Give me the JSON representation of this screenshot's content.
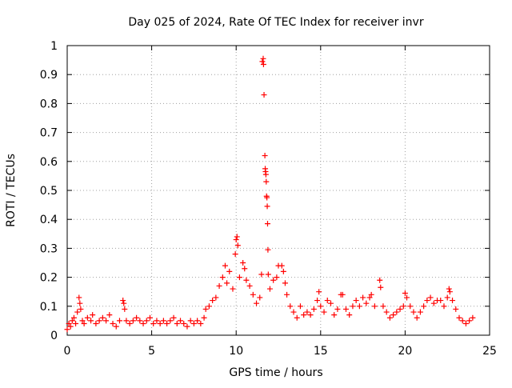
{
  "chart_data": {
    "type": "scatter",
    "title": "Day 025 of 2024, Rate Of TEC Index for receiver invr",
    "xlabel": "GPS time / hours",
    "ylabel": "ROTI / TECUs",
    "xlim": [
      0,
      25
    ],
    "ylim": [
      0,
      1
    ],
    "grid": true,
    "marker": "+",
    "marker_color": "#ff0000",
    "xticks": [
      0,
      5,
      10,
      15,
      20,
      25
    ],
    "yticks": [
      0,
      0.1,
      0.2,
      0.3,
      0.4,
      0.5,
      0.6,
      0.7,
      0.8,
      0.9,
      1
    ],
    "xtick_labels": [
      "0",
      "5",
      "10",
      "15",
      "20",
      "25"
    ],
    "ytick_labels": [
      "0",
      "0.1",
      "0.2",
      "0.3",
      "0.4",
      "0.5",
      "0.6",
      "0.7",
      "0.8",
      "0.9",
      "1"
    ],
    "series": [
      {
        "name": "ROTI",
        "points": [
          [
            0.0,
            0.02
          ],
          [
            0.1,
            0.04
          ],
          [
            0.2,
            0.03
          ],
          [
            0.3,
            0.05
          ],
          [
            0.4,
            0.06
          ],
          [
            0.5,
            0.04
          ],
          [
            0.6,
            0.08
          ],
          [
            0.7,
            0.13
          ],
          [
            0.75,
            0.11
          ],
          [
            0.8,
            0.09
          ],
          [
            0.9,
            0.05
          ],
          [
            1.0,
            0.04
          ],
          [
            1.2,
            0.06
          ],
          [
            1.4,
            0.05
          ],
          [
            1.5,
            0.07
          ],
          [
            1.7,
            0.04
          ],
          [
            1.9,
            0.05
          ],
          [
            2.1,
            0.06
          ],
          [
            2.3,
            0.05
          ],
          [
            2.5,
            0.07
          ],
          [
            2.7,
            0.04
          ],
          [
            2.9,
            0.03
          ],
          [
            3.1,
            0.05
          ],
          [
            3.3,
            0.12
          ],
          [
            3.35,
            0.11
          ],
          [
            3.4,
            0.09
          ],
          [
            3.5,
            0.05
          ],
          [
            3.7,
            0.04
          ],
          [
            3.9,
            0.05
          ],
          [
            4.1,
            0.06
          ],
          [
            4.3,
            0.05
          ],
          [
            4.5,
            0.04
          ],
          [
            4.7,
            0.05
          ],
          [
            4.9,
            0.06
          ],
          [
            5.1,
            0.04
          ],
          [
            5.3,
            0.05
          ],
          [
            5.5,
            0.04
          ],
          [
            5.7,
            0.05
          ],
          [
            5.9,
            0.04
          ],
          [
            6.1,
            0.05
          ],
          [
            6.3,
            0.06
          ],
          [
            6.5,
            0.04
          ],
          [
            6.7,
            0.05
          ],
          [
            6.9,
            0.04
          ],
          [
            7.1,
            0.03
          ],
          [
            7.3,
            0.05
          ],
          [
            7.5,
            0.04
          ],
          [
            7.7,
            0.05
          ],
          [
            7.9,
            0.04
          ],
          [
            8.1,
            0.06
          ],
          [
            8.2,
            0.09
          ],
          [
            8.4,
            0.1
          ],
          [
            8.6,
            0.12
          ],
          [
            8.8,
            0.13
          ],
          [
            9.0,
            0.17
          ],
          [
            9.2,
            0.2
          ],
          [
            9.35,
            0.24
          ],
          [
            9.45,
            0.18
          ],
          [
            9.6,
            0.22
          ],
          [
            9.8,
            0.16
          ],
          [
            9.95,
            0.28
          ],
          [
            10.0,
            0.33
          ],
          [
            10.05,
            0.34
          ],
          [
            10.1,
            0.31
          ],
          [
            10.2,
            0.2
          ],
          [
            10.4,
            0.25
          ],
          [
            10.5,
            0.23
          ],
          [
            10.6,
            0.19
          ],
          [
            10.8,
            0.17
          ],
          [
            11.0,
            0.14
          ],
          [
            11.2,
            0.11
          ],
          [
            11.4,
            0.13
          ],
          [
            11.5,
            0.21
          ],
          [
            11.55,
            0.945
          ],
          [
            11.6,
            0.955
          ],
          [
            11.62,
            0.935
          ],
          [
            11.65,
            0.83
          ],
          [
            11.7,
            0.62
          ],
          [
            11.72,
            0.575
          ],
          [
            11.74,
            0.565
          ],
          [
            11.76,
            0.555
          ],
          [
            11.78,
            0.53
          ],
          [
            11.8,
            0.48
          ],
          [
            11.82,
            0.475
          ],
          [
            11.84,
            0.445
          ],
          [
            11.86,
            0.385
          ],
          [
            11.88,
            0.295
          ],
          [
            11.9,
            0.21
          ],
          [
            12.0,
            0.16
          ],
          [
            12.2,
            0.19
          ],
          [
            12.4,
            0.2
          ],
          [
            12.5,
            0.24
          ],
          [
            12.7,
            0.24
          ],
          [
            12.8,
            0.22
          ],
          [
            12.9,
            0.18
          ],
          [
            13.0,
            0.14
          ],
          [
            13.2,
            0.1
          ],
          [
            13.4,
            0.08
          ],
          [
            13.6,
            0.06
          ],
          [
            13.8,
            0.1
          ],
          [
            14.0,
            0.07
          ],
          [
            14.2,
            0.08
          ],
          [
            14.4,
            0.07
          ],
          [
            14.6,
            0.09
          ],
          [
            14.8,
            0.12
          ],
          [
            14.9,
            0.15
          ],
          [
            15.0,
            0.1
          ],
          [
            15.2,
            0.08
          ],
          [
            15.4,
            0.12
          ],
          [
            15.6,
            0.11
          ],
          [
            15.8,
            0.07
          ],
          [
            16.0,
            0.09
          ],
          [
            16.2,
            0.14
          ],
          [
            16.3,
            0.14
          ],
          [
            16.5,
            0.09
          ],
          [
            16.7,
            0.07
          ],
          [
            16.9,
            0.1
          ],
          [
            17.1,
            0.12
          ],
          [
            17.3,
            0.1
          ],
          [
            17.5,
            0.13
          ],
          [
            17.7,
            0.11
          ],
          [
            17.9,
            0.13
          ],
          [
            18.0,
            0.14
          ],
          [
            18.2,
            0.1
          ],
          [
            18.5,
            0.19
          ],
          [
            18.55,
            0.165
          ],
          [
            18.7,
            0.1
          ],
          [
            18.9,
            0.08
          ],
          [
            19.1,
            0.06
          ],
          [
            19.3,
            0.07
          ],
          [
            19.5,
            0.08
          ],
          [
            19.7,
            0.09
          ],
          [
            19.9,
            0.1
          ],
          [
            20.0,
            0.145
          ],
          [
            20.1,
            0.13
          ],
          [
            20.3,
            0.1
          ],
          [
            20.5,
            0.08
          ],
          [
            20.7,
            0.06
          ],
          [
            20.9,
            0.08
          ],
          [
            21.1,
            0.1
          ],
          [
            21.3,
            0.12
          ],
          [
            21.5,
            0.13
          ],
          [
            21.7,
            0.11
          ],
          [
            21.9,
            0.12
          ],
          [
            22.1,
            0.12
          ],
          [
            22.3,
            0.1
          ],
          [
            22.5,
            0.13
          ],
          [
            22.6,
            0.16
          ],
          [
            22.65,
            0.15
          ],
          [
            22.8,
            0.12
          ],
          [
            23.0,
            0.09
          ],
          [
            23.2,
            0.06
          ],
          [
            23.4,
            0.05
          ],
          [
            23.6,
            0.04
          ],
          [
            23.8,
            0.05
          ],
          [
            24.0,
            0.06
          ]
        ]
      }
    ]
  }
}
